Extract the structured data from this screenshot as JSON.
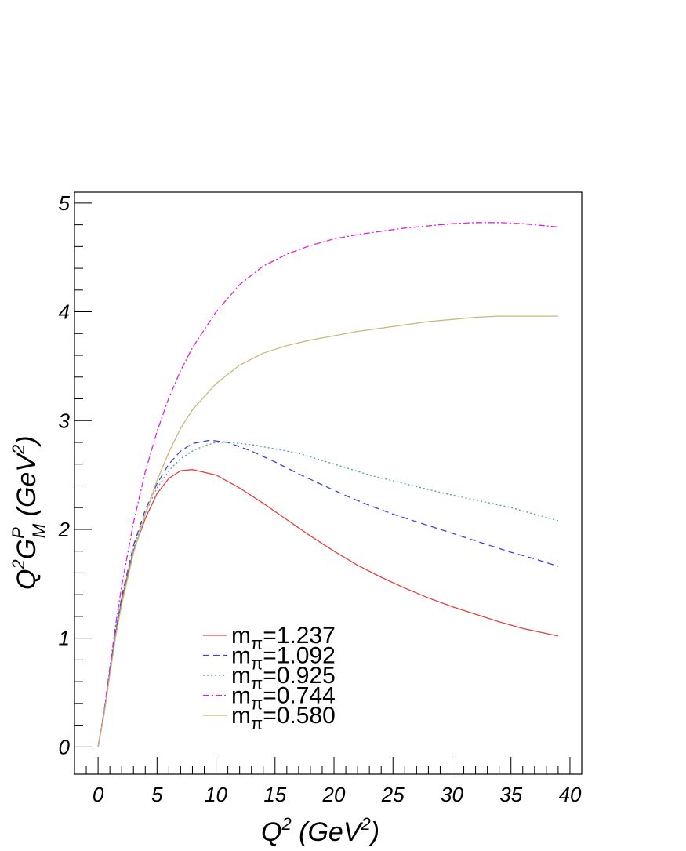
{
  "chart_data": {
    "type": "line",
    "title": "",
    "xlabel": {
      "base": "Q",
      "sup": "2",
      "rest": " (GeV",
      "sup2": "2",
      "close": ")"
    },
    "ylabel": {
      "q": "Q",
      "q_sup": "2",
      "g": "G",
      "g_sup": "P",
      "g_sub": "M",
      "rest": " (GeV",
      "sup2": "2",
      "close": ")"
    },
    "xlim": [
      -2,
      41
    ],
    "ylim": [
      -0.25,
      5.1
    ],
    "xticks": [
      0,
      5,
      10,
      15,
      20,
      25,
      30,
      35,
      40
    ],
    "yticks": [
      0,
      1,
      2,
      3,
      4,
      5
    ],
    "grid": false,
    "legend_position": "bottom-center",
    "series": [
      {
        "name": "1.237",
        "legend_prefix": "m",
        "legend_sub": "π",
        "legend_eq": "=",
        "color": "#e04040",
        "dash": "none",
        "x": [
          0,
          0.5,
          1,
          1.5,
          2,
          3,
          4,
          5,
          6,
          7,
          8,
          10,
          12,
          14,
          16,
          18,
          20,
          22,
          24,
          26,
          28,
          30,
          32,
          34,
          36,
          39
        ],
        "y": [
          0,
          0.3,
          0.68,
          1.05,
          1.35,
          1.8,
          2.1,
          2.33,
          2.47,
          2.54,
          2.55,
          2.5,
          2.38,
          2.24,
          2.09,
          1.94,
          1.8,
          1.67,
          1.56,
          1.46,
          1.37,
          1.29,
          1.22,
          1.15,
          1.09,
          1.02
        ]
      },
      {
        "name": "1.092",
        "legend_prefix": "m",
        "legend_sub": "π",
        "legend_eq": "=",
        "color": "#4040e0",
        "dash": "8,5",
        "x": [
          0,
          0.5,
          1,
          1.5,
          2,
          3,
          4,
          5,
          6,
          7,
          8,
          9.5,
          11,
          13,
          15,
          17,
          19,
          21,
          23,
          25,
          27,
          29,
          31,
          33,
          35,
          37,
          39
        ],
        "y": [
          0,
          0.31,
          0.7,
          1.07,
          1.38,
          1.85,
          2.18,
          2.42,
          2.6,
          2.72,
          2.79,
          2.82,
          2.8,
          2.72,
          2.62,
          2.51,
          2.41,
          2.31,
          2.22,
          2.14,
          2.07,
          2.0,
          1.93,
          1.86,
          1.79,
          1.73,
          1.66
        ]
      },
      {
        "name": "0.925",
        "legend_prefix": "m",
        "legend_sub": "π",
        "legend_eq": "=",
        "color": "#4a9e9e",
        "dash": "2,3",
        "x": [
          0,
          0.5,
          1,
          1.5,
          2,
          3,
          4,
          5,
          6,
          7,
          8,
          9,
          10,
          11,
          13,
          15,
          17,
          20,
          23,
          26,
          29,
          32,
          35,
          37,
          39
        ],
        "y": [
          0,
          0.31,
          0.7,
          1.07,
          1.37,
          1.82,
          2.15,
          2.38,
          2.54,
          2.65,
          2.72,
          2.77,
          2.8,
          2.8,
          2.78,
          2.74,
          2.7,
          2.6,
          2.5,
          2.42,
          2.34,
          2.27,
          2.2,
          2.14,
          2.08
        ]
      },
      {
        "name": "0.744",
        "legend_prefix": "m",
        "legend_sub": "π",
        "legend_eq": "=",
        "color": "#e020e0",
        "dash": "8,3,2,3",
        "x": [
          0,
          0.5,
          1,
          1.5,
          2,
          3,
          4,
          5,
          6,
          7,
          8,
          10,
          12,
          14,
          16,
          18,
          20,
          22,
          24,
          26,
          28,
          30,
          32,
          34,
          36,
          39
        ],
        "y": [
          0,
          0.32,
          0.73,
          1.13,
          1.48,
          2.06,
          2.53,
          2.9,
          3.21,
          3.46,
          3.67,
          4.0,
          4.25,
          4.42,
          4.53,
          4.61,
          4.67,
          4.71,
          4.74,
          4.77,
          4.79,
          4.81,
          4.82,
          4.82,
          4.81,
          4.78
        ]
      },
      {
        "name": "0.580",
        "legend_prefix": "m",
        "legend_sub": "π",
        "legend_eq": "=",
        "color": "#c8b87a",
        "dash": "none",
        "x": [
          0,
          0.5,
          1,
          1.5,
          2,
          3,
          4,
          5,
          6,
          7,
          8,
          10,
          12,
          14,
          16,
          18,
          20,
          22,
          24,
          26,
          28,
          30,
          32,
          34,
          36,
          39
        ],
        "y": [
          0,
          0.29,
          0.66,
          1.02,
          1.31,
          1.78,
          2.14,
          2.45,
          2.71,
          2.93,
          3.1,
          3.34,
          3.51,
          3.62,
          3.69,
          3.74,
          3.78,
          3.82,
          3.85,
          3.88,
          3.91,
          3.93,
          3.95,
          3.96,
          3.96,
          3.96
        ]
      }
    ]
  }
}
